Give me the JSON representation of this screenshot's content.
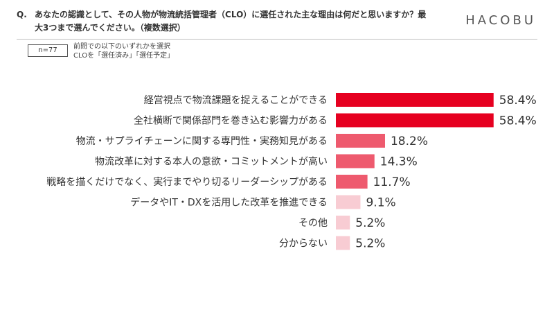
{
  "header": {
    "question_label": "Q.",
    "question_text": "あなたの認識として、その人物が物流統括管理者（CLO）に選任された主な理由は何だと思いますか？最大3つまで選んでください。（複数選択）",
    "logo": "HACOBU"
  },
  "sample": {
    "n_label": "n=77",
    "note_line1": "前問での以下のいずれかを選択",
    "note_line2": "CLOを「選任済み」「選任予定」"
  },
  "colors": {
    "bar_high": "#e60020",
    "bar_mid": "#ee5a6e",
    "bar_low": "#f8ccd3",
    "text": "#333333"
  },
  "chart_data": {
    "type": "bar",
    "orientation": "horizontal",
    "categories": [
      "経営視点で物流課題を捉えることができる",
      "全社横断で関係部門を巻き込む影響力がある",
      "物流・サプライチェーンに関する専門性・実務知見がある",
      "物流改革に対する本人の意欲・コミットメントが高い",
      "戦略を描くだけでなく、実行までやり切るリーダーシップがある",
      "データやIT・DXを活用した改革を推進できる",
      "その他",
      "分からない"
    ],
    "values": [
      58.4,
      58.4,
      18.2,
      14.3,
      11.7,
      9.1,
      5.2,
      5.2
    ],
    "value_labels": [
      "58.4%",
      "58.4%",
      "18.2%",
      "14.3%",
      "11.7%",
      "9.1%",
      "5.2%",
      "5.2%"
    ],
    "unit": "%",
    "xlim": [
      0,
      100
    ],
    "grid": false,
    "legend": "none"
  }
}
